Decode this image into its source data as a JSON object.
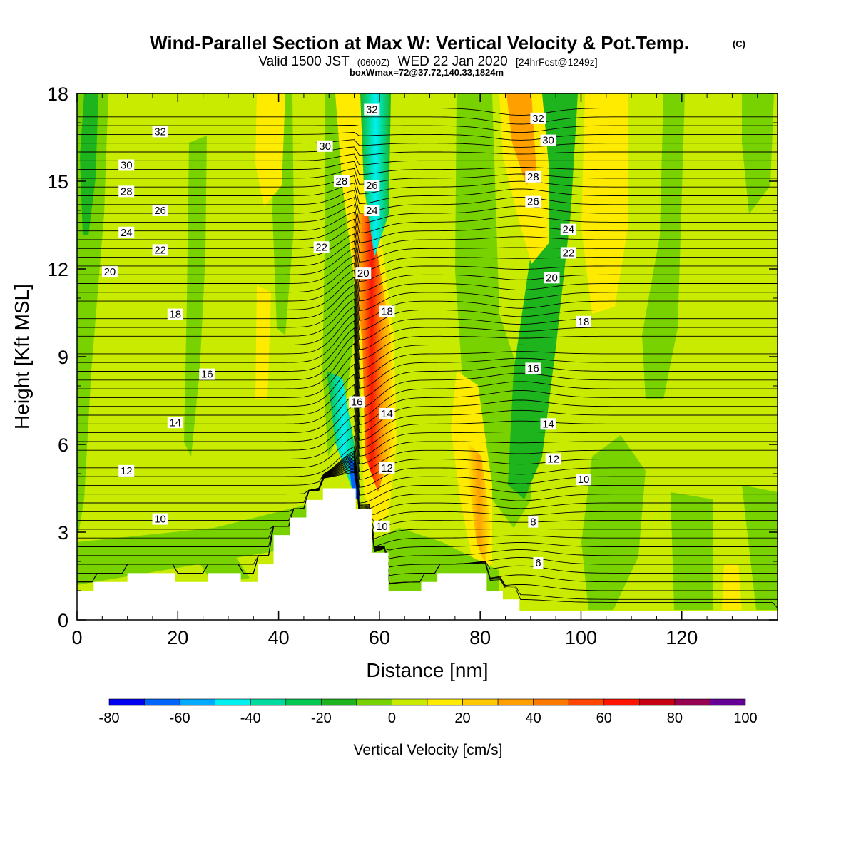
{
  "chart_data": {
    "type": "heatmap",
    "title": {
      "main": "Wind-Parallel Section at Max W: Vertical Velocity & Pot.Temp.",
      "copyright": "(C)",
      "valid_prefix": "Valid 1500 JST",
      "valid_zulu": "(0600Z)",
      "valid_date": "WED 22 Jan 2020",
      "forecast": "[24hrFcst@1249z]",
      "box_info": "boxWmax=72@37.72,140.33,1824m"
    },
    "xlabel": "Distance [nm]",
    "ylabel": "Height [Kft MSL]",
    "xlim": [
      0,
      139
    ],
    "ylim": [
      0,
      18
    ],
    "x_ticks": [
      0,
      20,
      40,
      60,
      80,
      100,
      120
    ],
    "y_ticks": [
      0,
      3,
      6,
      9,
      12,
      15,
      18
    ],
    "colorbar": {
      "label": "Vertical Velocity [cm/s]",
      "ticks": [
        -80,
        -60,
        -40,
        -20,
        0,
        20,
        40,
        60,
        80,
        100
      ],
      "levels": [
        -80,
        -70,
        -60,
        -50,
        -40,
        -30,
        -20,
        -10,
        0,
        10,
        20,
        30,
        40,
        50,
        60,
        70,
        80,
        90,
        100
      ],
      "colors": [
        "#0000f0",
        "#0064ff",
        "#00aaff",
        "#00f0f0",
        "#00dca0",
        "#00c850",
        "#1eb41e",
        "#78d200",
        "#c8eb00",
        "#ffeb00",
        "#ffc800",
        "#ffa000",
        "#ff7800",
        "#ff4600",
        "#ff1400",
        "#c80014",
        "#960050",
        "#640096"
      ]
    },
    "terrain_kft": [
      [
        0,
        1.0
      ],
      [
        3.3,
        1.0
      ],
      [
        3.3,
        1.3
      ],
      [
        10,
        1.3
      ],
      [
        10,
        1.6
      ],
      [
        19.5,
        1.6
      ],
      [
        19.5,
        1.3
      ],
      [
        26,
        1.3
      ],
      [
        26,
        1.6
      ],
      [
        32.5,
        1.6
      ],
      [
        32.5,
        1.3
      ],
      [
        35.8,
        1.3
      ],
      [
        35.8,
        1.9
      ],
      [
        39,
        1.9
      ],
      [
        39,
        2.9
      ],
      [
        42.3,
        2.9
      ],
      [
        42.3,
        3.5
      ],
      [
        45.5,
        3.5
      ],
      [
        45.5,
        4.1
      ],
      [
        48.8,
        4.1
      ],
      [
        48.8,
        4.5
      ],
      [
        55.3,
        4.5
      ],
      [
        55.3,
        3.8
      ],
      [
        58.5,
        3.8
      ],
      [
        58.5,
        2.3
      ],
      [
        61.8,
        2.3
      ],
      [
        61.8,
        1.0
      ],
      [
        68.3,
        1.0
      ],
      [
        68.3,
        1.3
      ],
      [
        71.5,
        1.3
      ],
      [
        71.5,
        1.6
      ],
      [
        81.3,
        1.6
      ],
      [
        81.3,
        1.0
      ],
      [
        84.5,
        1.0
      ],
      [
        84.5,
        0.7
      ],
      [
        87.8,
        0.7
      ],
      [
        87.8,
        0.3
      ],
      [
        139,
        0.3
      ],
      [
        139,
        0
      ]
    ],
    "wmax_line": [
      [
        2,
        17.9
      ],
      [
        50,
        17.6
      ],
      [
        55,
        14
      ],
      [
        56,
        11
      ],
      [
        56.5,
        8
      ],
      [
        56,
        6
      ],
      [
        55.5,
        5
      ],
      [
        55.5,
        4.5
      ]
    ],
    "theta_contours": [
      {
        "label": "6",
        "pos": [
          91.5,
          1.95
        ]
      },
      {
        "label": "8",
        "pos": [
          90.5,
          3.35
        ]
      },
      {
        "label": "10",
        "pos": [
          16.5,
          3.45
        ]
      },
      {
        "label": "10",
        "pos": [
          60.5,
          3.2
        ]
      },
      {
        "label": "10",
        "pos": [
          100.5,
          4.8
        ]
      },
      {
        "label": "12",
        "pos": [
          9.8,
          5.1
        ]
      },
      {
        "label": "12",
        "pos": [
          61.5,
          5.2
        ]
      },
      {
        "label": "12",
        "pos": [
          94.5,
          5.5
        ]
      },
      {
        "label": "14",
        "pos": [
          19.5,
          6.75
        ]
      },
      {
        "label": "14",
        "pos": [
          61.5,
          7.05
        ]
      },
      {
        "label": "14",
        "pos": [
          93.5,
          6.7
        ]
      },
      {
        "label": "16",
        "pos": [
          25.8,
          8.4
        ]
      },
      {
        "label": "16",
        "pos": [
          55.5,
          7.45
        ]
      },
      {
        "label": "16",
        "pos": [
          90.5,
          8.6
        ]
      },
      {
        "label": "18",
        "pos": [
          19.5,
          10.45
        ]
      },
      {
        "label": "18",
        "pos": [
          61.5,
          10.55
        ]
      },
      {
        "label": "18",
        "pos": [
          100.5,
          10.2
        ]
      },
      {
        "label": "20",
        "pos": [
          6.5,
          11.9
        ]
      },
      {
        "label": "20",
        "pos": [
          56.8,
          11.85
        ]
      },
      {
        "label": "20",
        "pos": [
          94.2,
          11.7
        ]
      },
      {
        "label": "22",
        "pos": [
          16.5,
          12.65
        ]
      },
      {
        "label": "22",
        "pos": [
          48.5,
          12.75
        ]
      },
      {
        "label": "22",
        "pos": [
          97.5,
          12.55
        ]
      },
      {
        "label": "24",
        "pos": [
          9.8,
          13.25
        ]
      },
      {
        "label": "24",
        "pos": [
          58.5,
          14.0
        ]
      },
      {
        "label": "24",
        "pos": [
          97.5,
          13.35
        ]
      },
      {
        "label": "26",
        "pos": [
          16.5,
          14.0
        ]
      },
      {
        "label": "26",
        "pos": [
          58.5,
          14.85
        ]
      },
      {
        "label": "26",
        "pos": [
          90.5,
          14.3
        ]
      },
      {
        "label": "28",
        "pos": [
          9.8,
          14.65
        ]
      },
      {
        "label": "28",
        "pos": [
          52.5,
          15.0
        ]
      },
      {
        "label": "28",
        "pos": [
          90.5,
          15.15
        ]
      },
      {
        "label": "30",
        "pos": [
          9.8,
          15.55
        ]
      },
      {
        "label": "30",
        "pos": [
          49.2,
          16.2
        ]
      },
      {
        "label": "30",
        "pos": [
          93.5,
          16.4
        ]
      },
      {
        "label": "32",
        "pos": [
          16.5,
          16.7
        ]
      },
      {
        "label": "32",
        "pos": [
          58.5,
          17.45
        ]
      },
      {
        "label": "32",
        "pos": [
          91.5,
          17.15
        ]
      }
    ]
  }
}
